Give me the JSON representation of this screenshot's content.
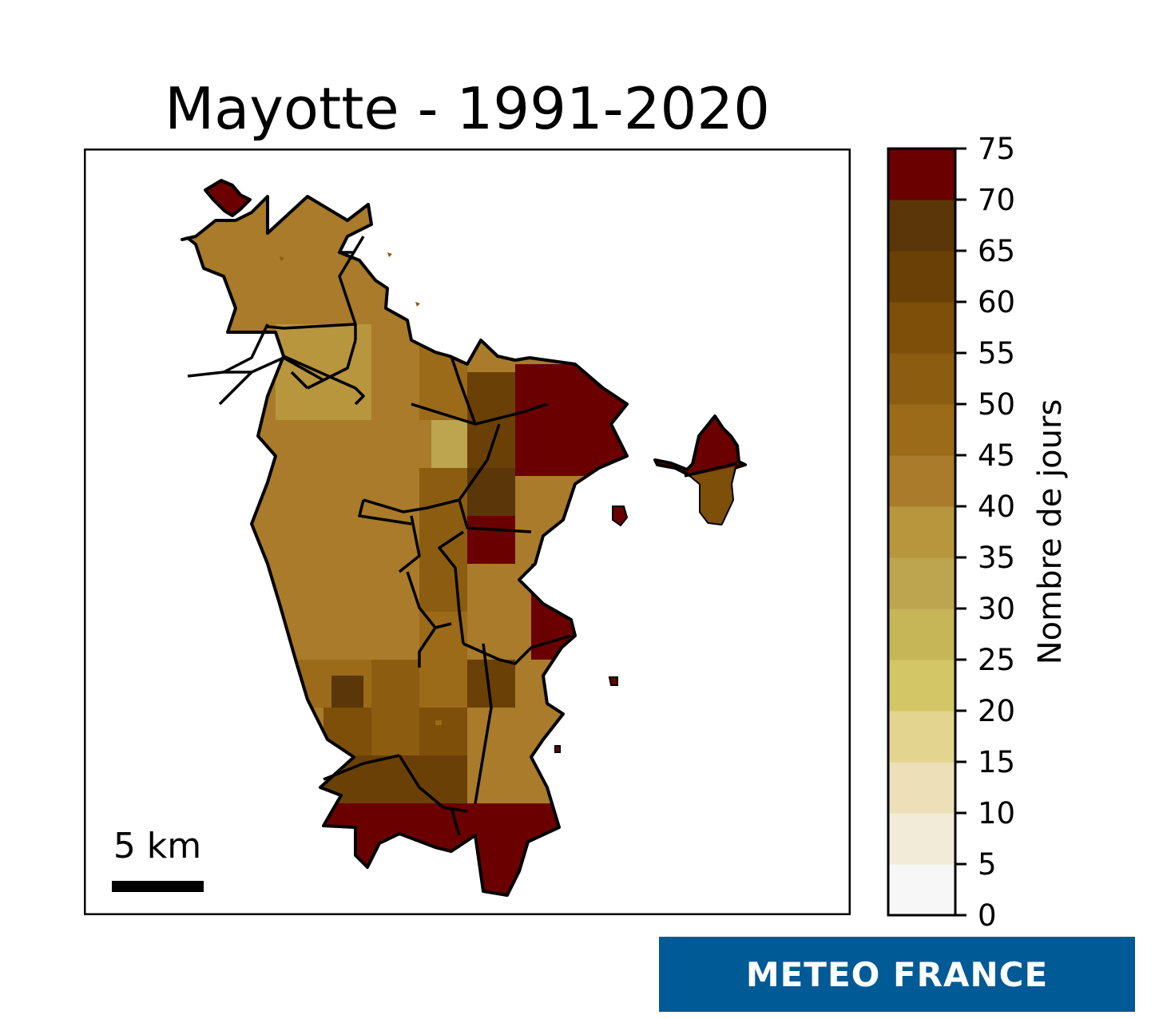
{
  "title": "Mayotte - 1991-2020",
  "scale": {
    "label": "5 km"
  },
  "colorbar": {
    "label": "Nombre de jours",
    "ticks": [
      "0",
      "5",
      "10",
      "15",
      "20",
      "25",
      "30",
      "35",
      "40",
      "45",
      "50",
      "55",
      "60",
      "65",
      "70",
      "75"
    ],
    "range": [
      0,
      75
    ],
    "step": 5,
    "colors": [
      "#f7f7f7",
      "#f2ebd7",
      "#ede0b8",
      "#e3d58f",
      "#d2c666",
      "#c6b658",
      "#bda44f",
      "#b8963e",
      "#a97b2a",
      "#9b6b1a",
      "#8c5c10",
      "#7d4f08",
      "#6b4006",
      "#5a3608",
      "#6a0000"
    ]
  },
  "brand": {
    "text": "METEO FRANCE",
    "color": "#005a96"
  }
}
